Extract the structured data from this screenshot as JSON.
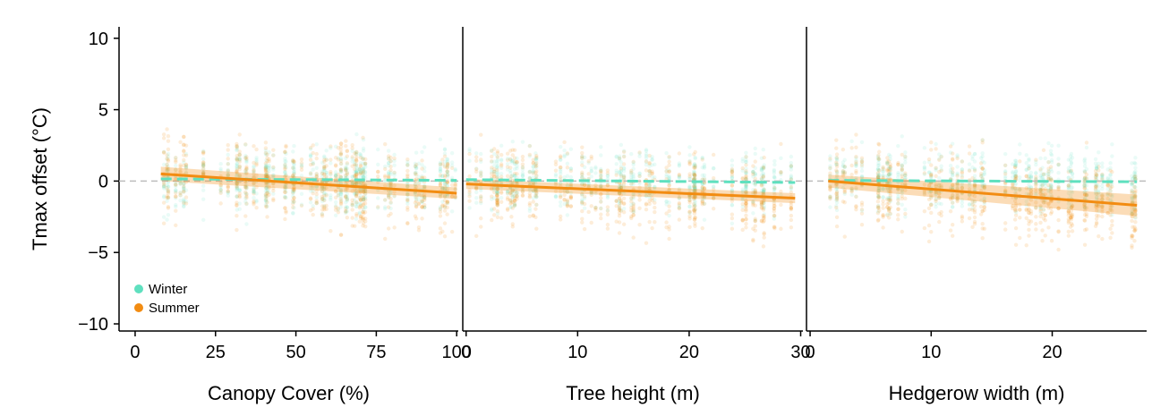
{
  "chart_data": {
    "type": "scatter",
    "ylabel": "Tmax offset (°C)",
    "ylim": [
      -10.5,
      10.8
    ],
    "yticks": [
      10,
      5,
      0,
      -5,
      -10
    ],
    "ytick_labels": [
      "10",
      "5",
      "0",
      "−5",
      "−10"
    ],
    "reference_line": 0,
    "colors": {
      "Winter": "#5fe0bf",
      "Summer": "#f28c12",
      "reference": "#bdbdbd"
    },
    "legend": {
      "position": "bottom-left",
      "entries": [
        "Winter",
        "Summer"
      ]
    },
    "panels": [
      {
        "xlabel": "Canopy Cover (%)",
        "xlim": [
          -5,
          100.5
        ],
        "xticks": [
          0,
          25,
          50,
          75,
          100
        ],
        "xtick_labels": [
          "0",
          "25",
          "50",
          "75",
          "100"
        ],
        "x_data_range": [
          8,
          100
        ],
        "series": [
          {
            "name": "Winter",
            "fit": [
              [
                8,
                0.15
              ],
              [
                100,
                0.05
              ]
            ],
            "line_style": "dashed"
          },
          {
            "name": "Summer",
            "fit": [
              [
                8,
                0.5
              ],
              [
                100,
                -0.85
              ]
            ],
            "line_style": "solid",
            "ci_halfwidth": [
              0.5,
              0.4
            ]
          }
        ]
      },
      {
        "xlabel": "Tree height (m)",
        "xlim": [
          -0.3,
          30.2
        ],
        "xticks": [
          0,
          10,
          20,
          30
        ],
        "xtick_labels": [
          "0",
          "10",
          "20",
          "30"
        ],
        "x_data_range": [
          0,
          29.5
        ],
        "series": [
          {
            "name": "Winter",
            "fit": [
              [
                0,
                0.1
              ],
              [
                29.5,
                -0.1
              ]
            ],
            "line_style": "dashed"
          },
          {
            "name": "Summer",
            "fit": [
              [
                0,
                -0.2
              ],
              [
                29.5,
                -1.2
              ]
            ],
            "line_style": "solid",
            "ci_halfwidth": [
              0.35,
              0.35
            ]
          }
        ]
      },
      {
        "xlabel": "Hedgerow width (m)",
        "xlim": [
          -0.3,
          27.8
        ],
        "xticks": [
          0,
          10,
          20
        ],
        "xtick_labels": [
          "0",
          "10",
          "20"
        ],
        "x_data_range": [
          1.5,
          27
        ],
        "series": [
          {
            "name": "Winter",
            "fit": [
              [
                1.5,
                0.05
              ],
              [
                27,
                -0.05
              ]
            ],
            "line_style": "dashed"
          },
          {
            "name": "Summer",
            "fit": [
              [
                1.5,
                0.0
              ],
              [
                27,
                -1.7
              ]
            ],
            "line_style": "solid",
            "ci_halfwidth": [
              0.45,
              0.75
            ]
          }
        ]
      }
    ]
  }
}
